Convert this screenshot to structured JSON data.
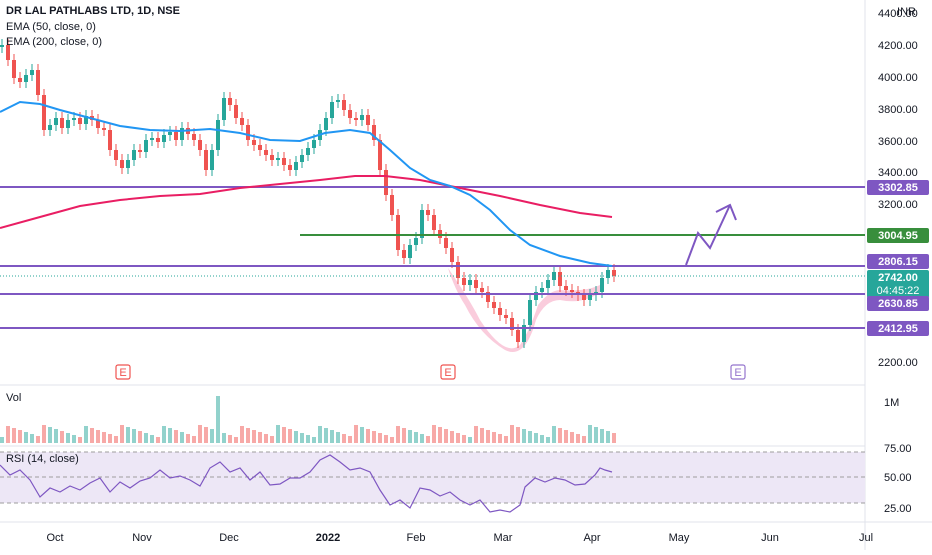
{
  "legend": {
    "title": "DR LAL PATHLABS LTD, 1D, NSE",
    "ema50": "EMA (50, close, 0)",
    "ema200": "EMA (200, close, 0)"
  },
  "currency": "INR",
  "price_axis": [
    "4400.00",
    "4200.00",
    "4000.00",
    "3800.00",
    "3600.00",
    "3400.00",
    "3200.00",
    "2200.00"
  ],
  "price_tags": {
    "level_3302": "3302.85",
    "level_3004": "3004.95",
    "level_2806": "2806.15",
    "last_price": "2742.00",
    "countdown": "04:45:22",
    "level_2630": "2630.85",
    "level_2412": "2412.95"
  },
  "earnings_marker": "E",
  "volume": {
    "label": "Vol",
    "scale": "1M"
  },
  "rsi": {
    "label": "RSI (14, close)",
    "levels": [
      "75.00",
      "50.00",
      "25.00"
    ]
  },
  "time_axis": [
    "Oct",
    "Nov",
    "Dec",
    "2022",
    "Feb",
    "Mar",
    "Apr",
    "May",
    "Jun",
    "Jul"
  ],
  "colors": {
    "up": "#26a69a",
    "down": "#ef5350",
    "ema50": "#2196f3",
    "ema200": "#e91e63",
    "hline_purple": "#7e57c2",
    "hline_green": "#388e3c",
    "pattern_fill": "#f8bbd0",
    "rsi_line": "#7e57c2",
    "rsi_band": "#ede7f6"
  }
}
